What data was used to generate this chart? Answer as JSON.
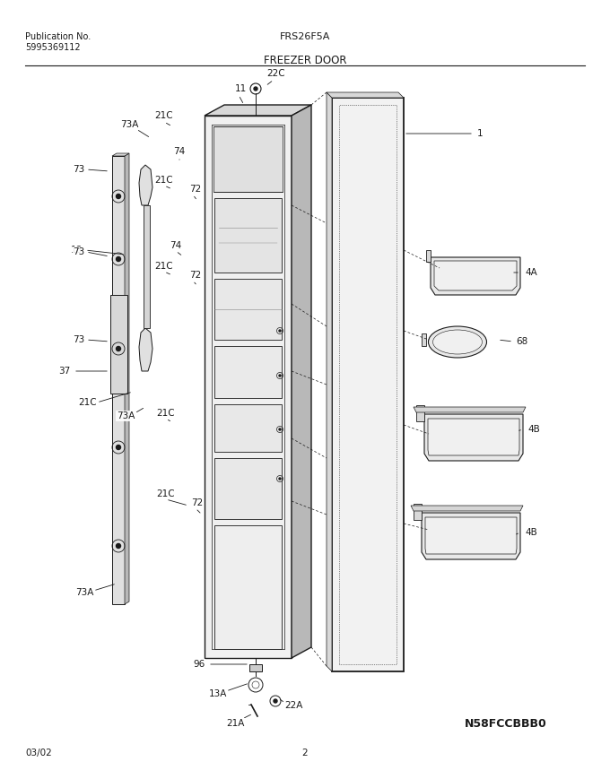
{
  "title_model": "FRS26F5A",
  "title_section": "FREEZER DOOR",
  "pub_no_label": "Publication No.",
  "pub_no": "5995369112",
  "date": "03/02",
  "page": "2",
  "diagram_id": "N58FCCBBB0",
  "bg_color": "#ffffff",
  "line_color": "#1a1a1a",
  "gray_light": "#d8d8d8",
  "gray_mid": "#b8b8b8",
  "gray_dark": "#888888"
}
